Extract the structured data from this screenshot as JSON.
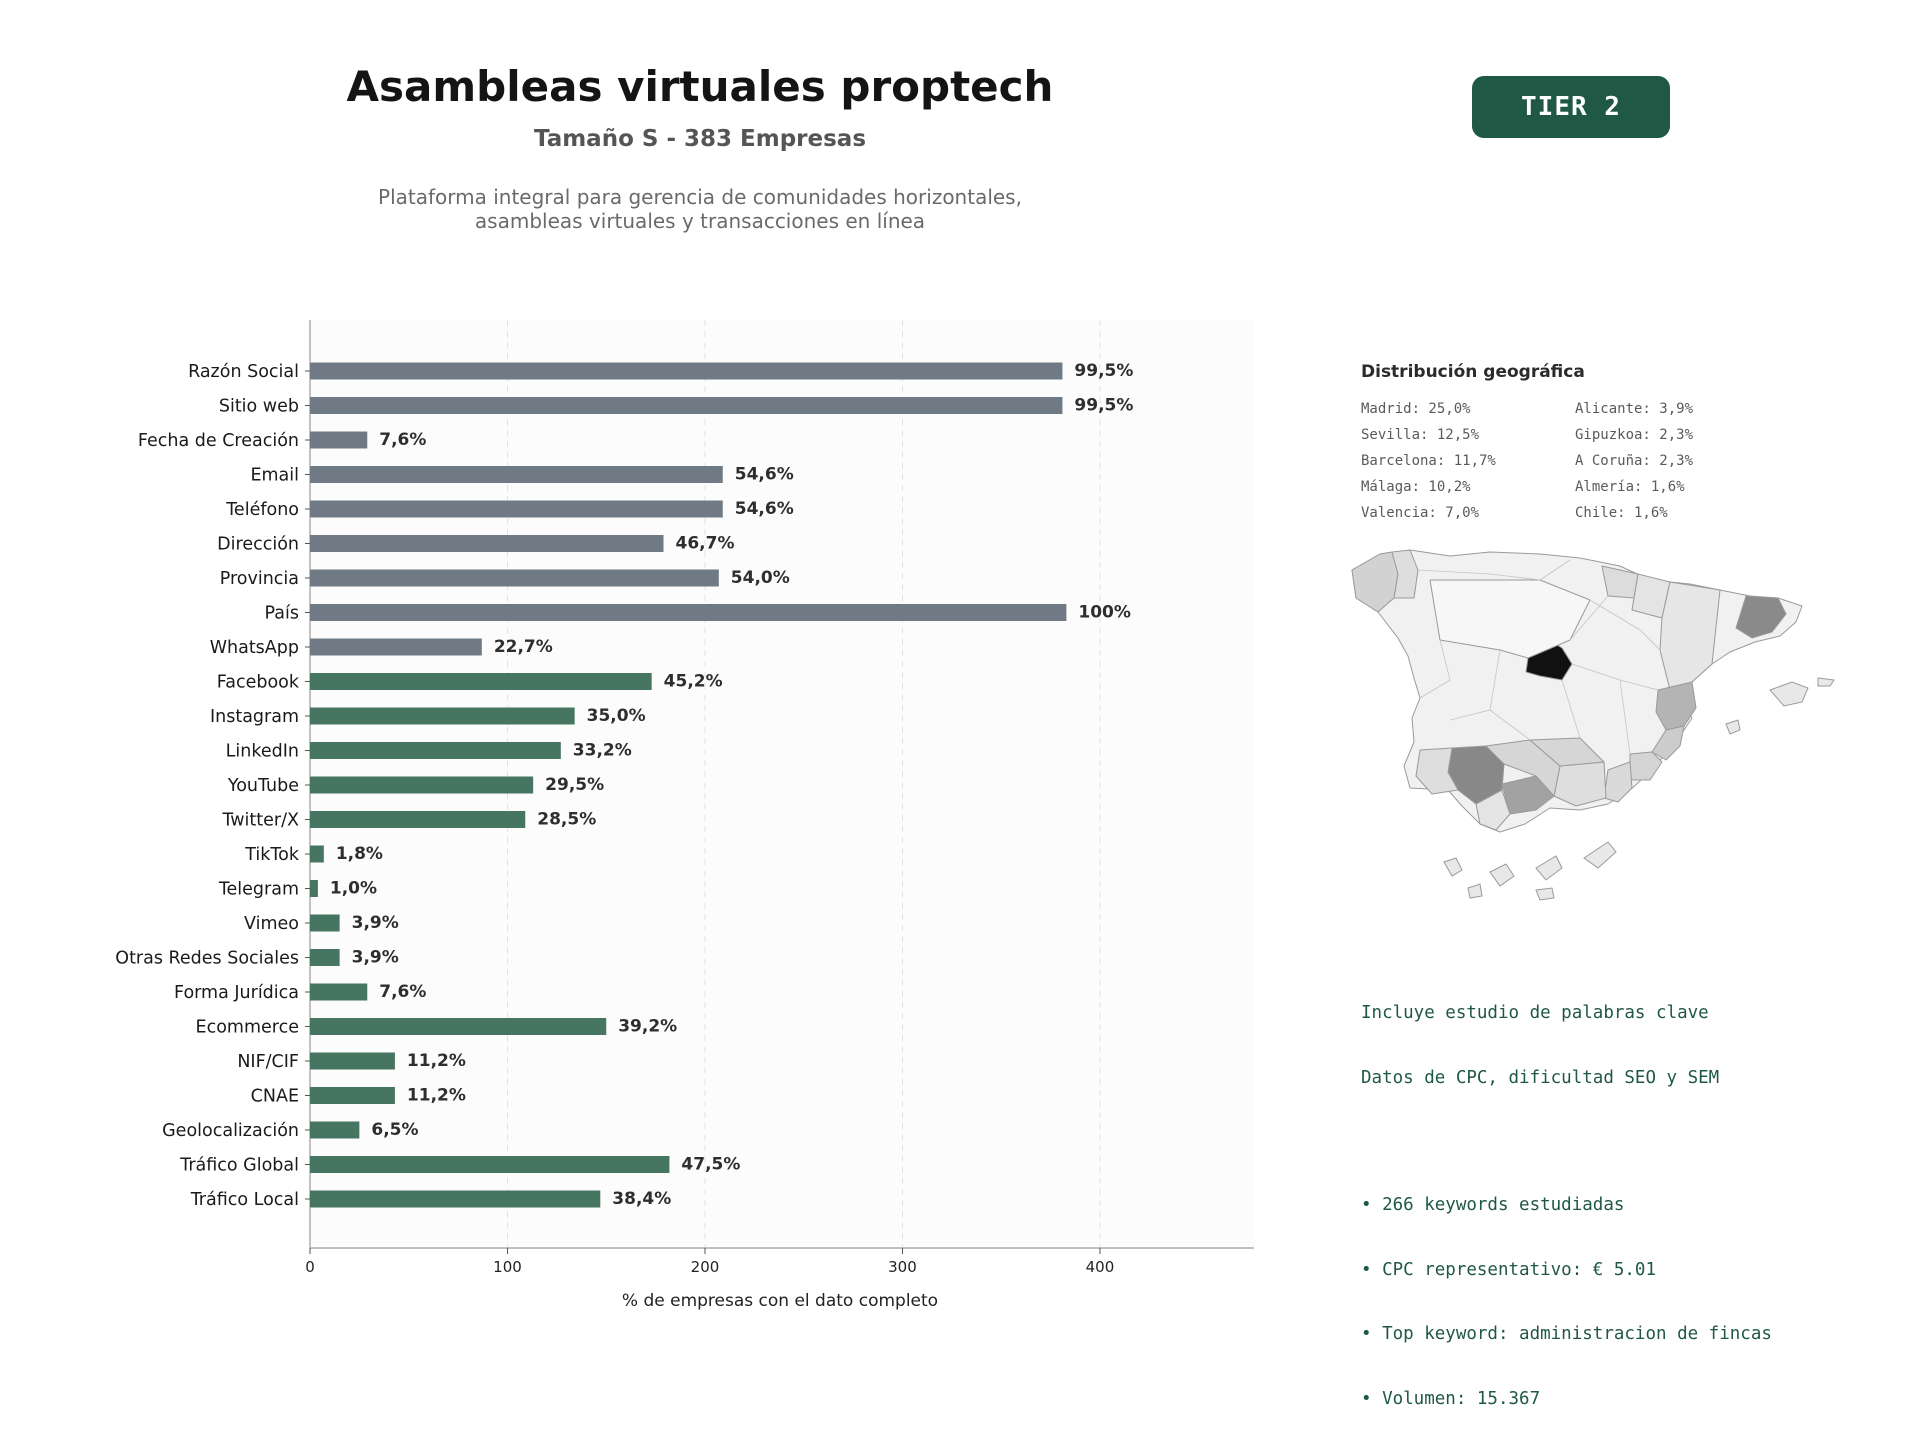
{
  "header": {
    "title": "Asambleas virtuales proptech",
    "subtitle": "Tamaño S - 383 Empresas",
    "description_line1": "Plataforma integral para gerencia de comunidades horizontales,",
    "description_line2": "asambleas virtuales y transacciones en línea",
    "tier_badge": "TIER 2"
  },
  "colors": {
    "basic_bar": "#6f7a84",
    "social_bar": "#467562",
    "accent": "#1f5845"
  },
  "chart_data": {
    "type": "bar",
    "orientation": "horizontal",
    "xlabel": "% de empresas con el dato completo",
    "xlim": [
      0,
      478
    ],
    "xticks": [
      0,
      100,
      200,
      300,
      400
    ],
    "grid": "vertical dashed",
    "categories": [
      "Razón Social",
      "Sitio web",
      "Fecha de Creación",
      "Email",
      "Teléfono",
      "Dirección",
      "Provincia",
      "País",
      "WhatsApp",
      "Facebook",
      "Instagram",
      "LinkedIn",
      "YouTube",
      "Twitter/X",
      "TikTok",
      "Telegram",
      "Vimeo",
      "Otras Redes Sociales",
      "Forma Jurídica",
      "Ecommerce",
      "NIF/CIF",
      "CNAE",
      "Geolocalización",
      "Tráfico Global",
      "Tráfico Local"
    ],
    "values": [
      381,
      381,
      29,
      209,
      209,
      179,
      207,
      383,
      87,
      173,
      134,
      127,
      113,
      109,
      7,
      4,
      15,
      15,
      29,
      150,
      43,
      43,
      25,
      182,
      147
    ],
    "labels": [
      "99,5%",
      "99,5%",
      "7,6%",
      "54,6%",
      "54,6%",
      "46,7%",
      "54,0%",
      "100%",
      "22,7%",
      "45,2%",
      "35,0%",
      "33,2%",
      "29,5%",
      "28,5%",
      "1,8%",
      "1,0%",
      "3,9%",
      "3,9%",
      "7,6%",
      "39,2%",
      "11,2%",
      "11,2%",
      "6,5%",
      "47,5%",
      "38,4%"
    ],
    "groups": [
      "basic",
      "basic",
      "basic",
      "basic",
      "basic",
      "basic",
      "basic",
      "basic",
      "basic",
      "social",
      "social",
      "social",
      "social",
      "social",
      "social",
      "social",
      "social",
      "social",
      "social",
      "social",
      "social",
      "social",
      "social",
      "social",
      "social"
    ]
  },
  "geo": {
    "title": "Distribución geográfica",
    "items": [
      "Madrid: 25,0%",
      "Alicante: 3,9%",
      "Sevilla: 12,5%",
      "Gipuzkoa: 2,3%",
      "Barcelona: 11,7%",
      "A Coruña: 2,3%",
      "Málaga: 10,2%",
      "Almería: 1,6%",
      "Valencia: 7,0%",
      "Chile: 1,6%"
    ]
  },
  "keywords": {
    "line1": "Incluye estudio de palabras clave",
    "line2": "Datos de CPC, dificultad SEO y SEM",
    "bullet1": "• 266 keywords estudiadas",
    "bullet2": "• CPC representativo: € 5.01",
    "bullet3": "• Top keyword: administracion de fincas",
    "bullet4": "• Volumen: 15.367"
  }
}
